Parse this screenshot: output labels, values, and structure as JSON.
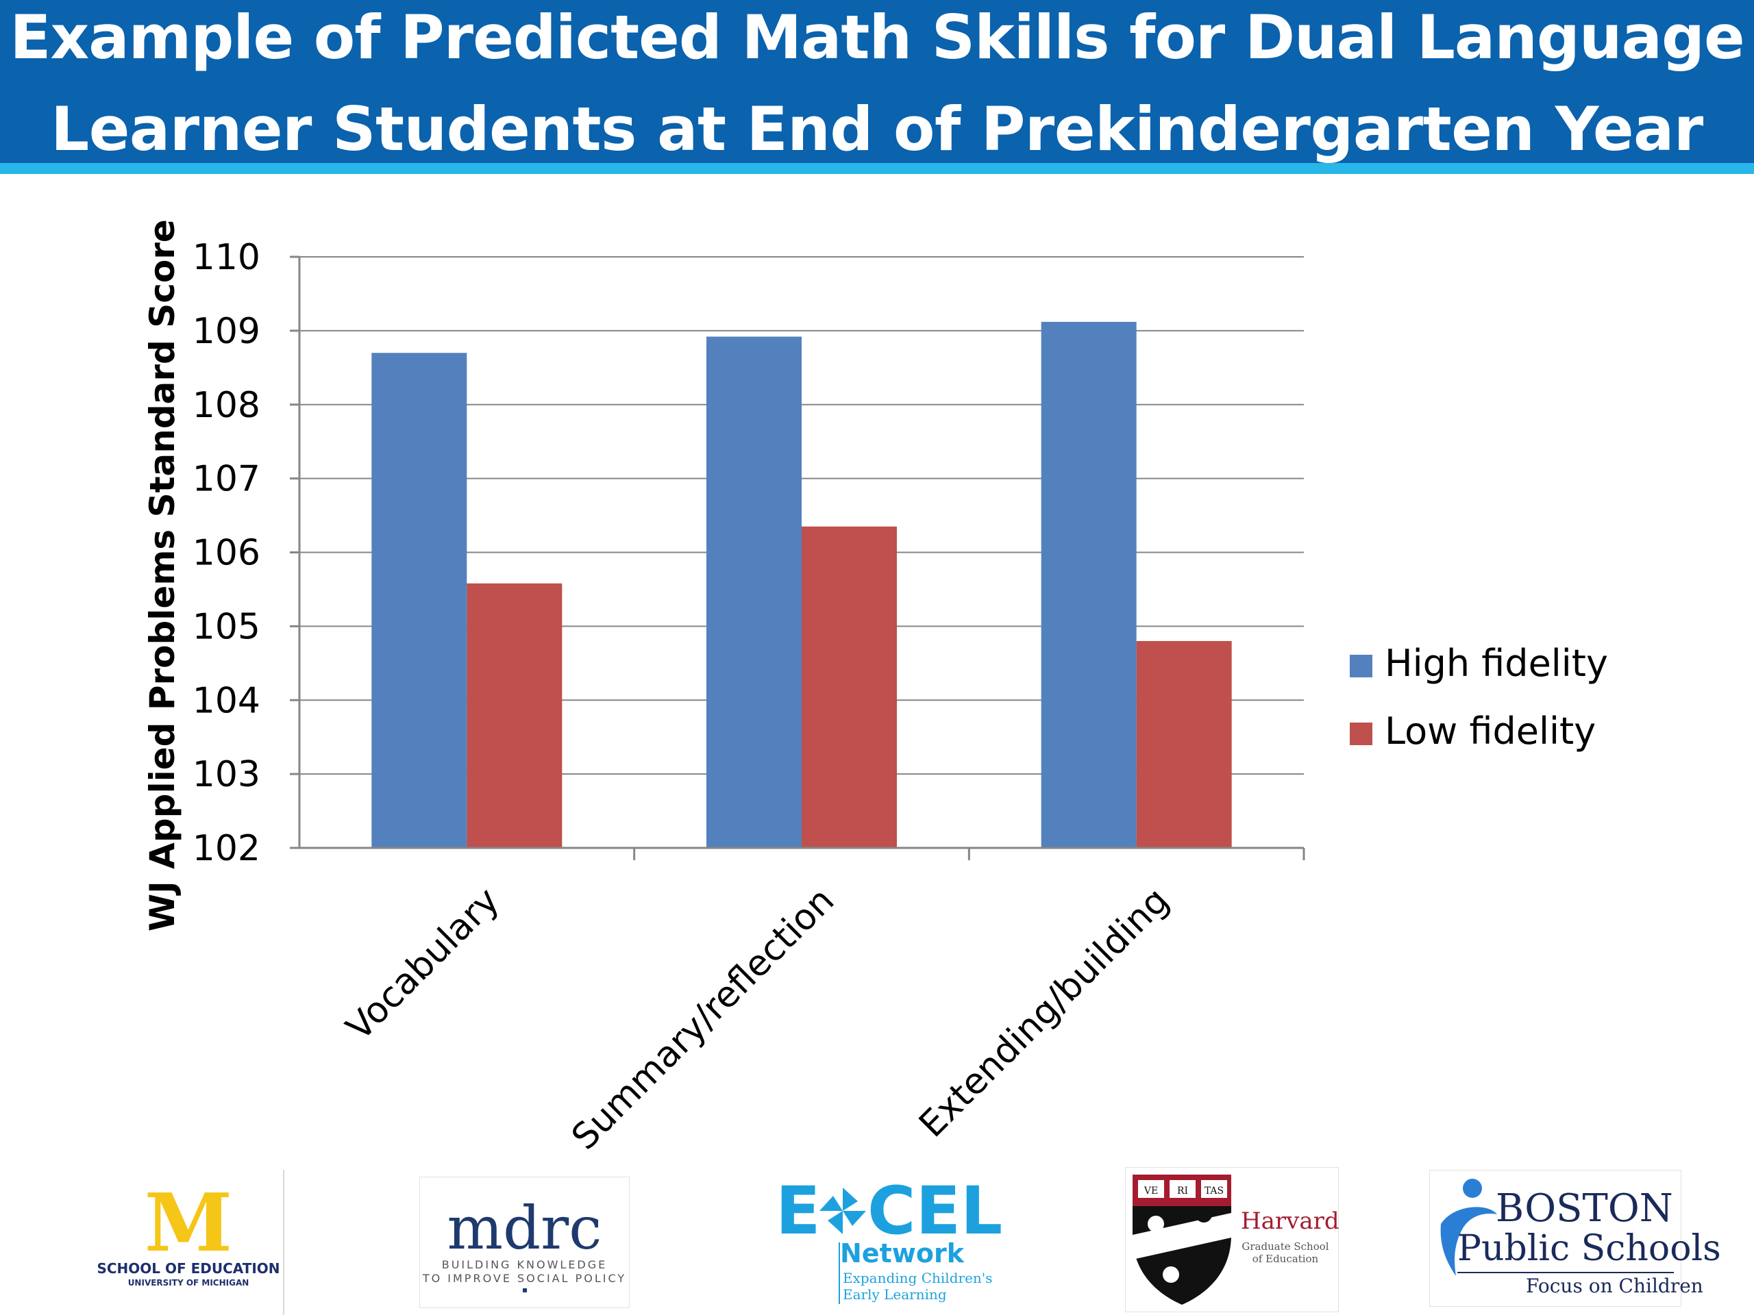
{
  "header": {
    "title_line_1": "Example of Predicted Math Skills for Dual Language",
    "title_line_2": "Learner Students at End of Prekindergarten Year",
    "background": "#0b62ad",
    "stripe": "#29b6e8"
  },
  "chart_data": {
    "type": "bar",
    "title": "Example of Predicted Math Skills for Dual Language Learner Students at End of Prekindergarten Year",
    "ylabel": "WJ Applied Problems Standard Score",
    "xlabel": "",
    "ylim": [
      102,
      110
    ],
    "yticks": [
      "102",
      "103",
      "104",
      "105",
      "106",
      "107",
      "108",
      "109",
      "110"
    ],
    "grid": true,
    "legend_position": "right",
    "categories": [
      "Vocabulary",
      "Summary/reflection",
      "Extending/building"
    ],
    "series": [
      {
        "name": "High fidelity",
        "color": "#5381bd",
        "values": [
          108.7,
          108.92,
          109.12
        ]
      },
      {
        "name": "Low fidelity",
        "color": "#bf504d",
        "values": [
          105.58,
          106.35,
          104.8
        ]
      }
    ]
  },
  "logos": {
    "umich": {
      "mark": "M",
      "line1": "SCHOOL OF EDUCATION",
      "line2": "UNIVERSITY OF MICHIGAN",
      "color": "#f5c518",
      "text_color": "#1e2f6e"
    },
    "mdrc": {
      "name": "mdrc",
      "tag1": "BUILDING KNOWLEDGE",
      "tag2": "TO IMPROVE SOCIAL POLICY",
      "color": "#1e3a6e"
    },
    "excel": {
      "e": "E",
      "cel": "CEL",
      "network": "Network",
      "tag1": "Expanding Children's",
      "tag2": "Early Learning",
      "color": "#1da1de"
    },
    "harvard": {
      "shield": "VE RI TAS",
      "name": "Harvard",
      "sub1": "Graduate School",
      "sub2": "of Education",
      "color": "#a51c30"
    },
    "boston": {
      "line1": "BOSTON",
      "line2": "Public Schools",
      "line3": "Focus on Children",
      "color": "#1a2a5a",
      "accent": "#2a7fd4"
    }
  }
}
